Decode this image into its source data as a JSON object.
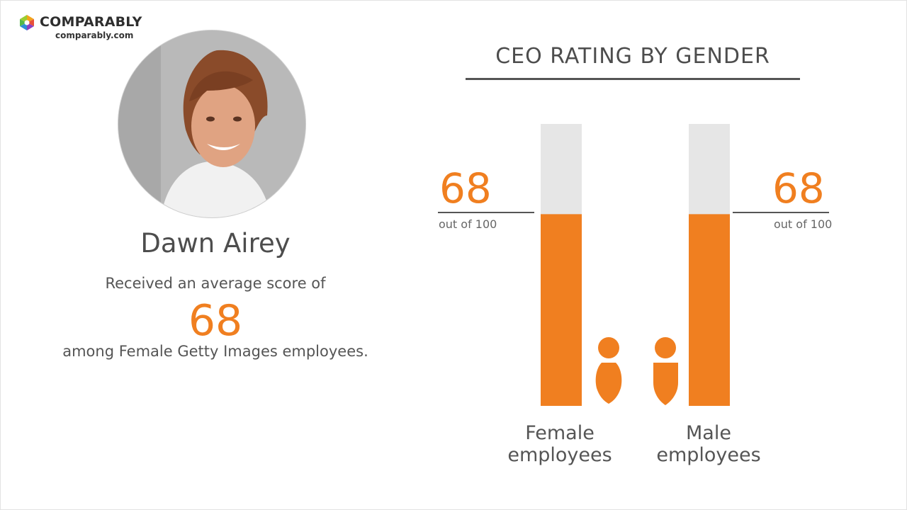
{
  "brand": {
    "name": "COMPARABLY",
    "url": "comparably.com",
    "colors": {
      "accent": "#f07f20",
      "track": "#e6e6e6"
    }
  },
  "person": {
    "name": "Dawn Airey",
    "subtitle": "Received an average score of",
    "score": "68",
    "company_line": "among Female Getty Images employees."
  },
  "chart_data": {
    "type": "bar",
    "title": "CEO RATING BY GENDER",
    "categories": [
      "Female\nemployees",
      "Male\nemployees"
    ],
    "category_lines": [
      [
        "Female",
        "employees"
      ],
      [
        "Male",
        "employees"
      ]
    ],
    "values": [
      68,
      68
    ],
    "max": 100,
    "value_labels": [
      "68",
      "68"
    ],
    "value_sublabel": "out of 100",
    "icons": [
      "female-person-icon",
      "male-person-icon"
    ]
  }
}
